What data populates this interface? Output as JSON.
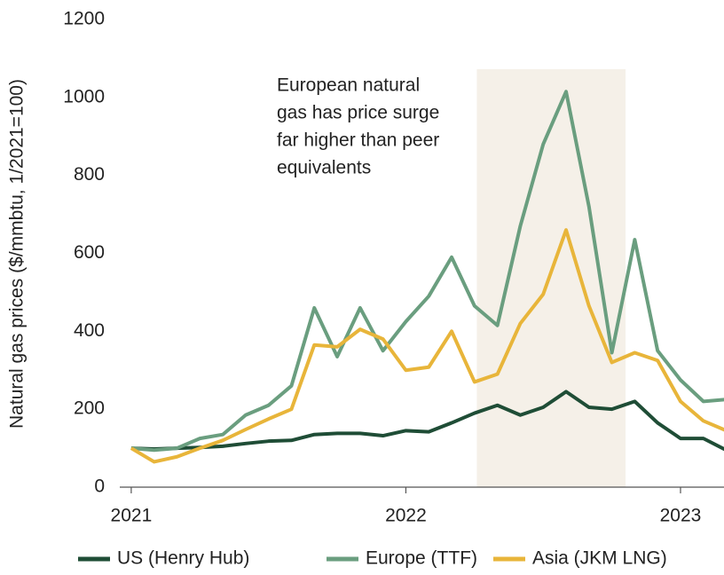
{
  "chart_data": {
    "type": "line",
    "y_label": "Natural gas prices ($/mmbtu, 1/2021=100)",
    "annotation": [
      "European natural",
      "gas has price surge",
      "far higher than peer",
      "equivalents"
    ],
    "shade": [
      15.1,
      21.6
    ],
    "x": [
      0,
      1,
      2,
      3,
      4,
      5,
      6,
      7,
      8,
      9,
      10,
      11,
      12,
      13,
      14,
      15,
      16,
      17,
      18,
      19,
      20,
      21,
      22,
      23,
      24,
      25,
      26
    ],
    "xlim": [
      -0.5,
      25.9
    ],
    "xticks": [
      {
        "value": 0,
        "label": "2021"
      },
      {
        "value": 12,
        "label": "2022"
      },
      {
        "value": 24,
        "label": "2023"
      }
    ],
    "ylim": [
      0,
      1200
    ],
    "yticks": [
      0,
      200,
      400,
      600,
      800,
      1000,
      1200
    ],
    "grid": false,
    "series": [
      {
        "name": "US (Henry Hub)",
        "color": "#1f4d36",
        "values": [
          100,
          98,
          100,
          102,
          105,
          112,
          118,
          120,
          135,
          138,
          138,
          132,
          145,
          142,
          165,
          190,
          210,
          185,
          205,
          245,
          205,
          200,
          220,
          165,
          125,
          125,
          95
        ]
      },
      {
        "name": "Europe (TTF)",
        "color": "#6a9e7f",
        "values": [
          100,
          95,
          100,
          125,
          135,
          185,
          210,
          260,
          460,
          335,
          460,
          350,
          425,
          490,
          590,
          465,
          415,
          670,
          880,
          1015,
          720,
          345,
          635,
          350,
          275,
          220,
          225
        ]
      },
      {
        "name": "Asia (JKM LNG)",
        "color": "#e8b53a",
        "values": [
          100,
          65,
          78,
          100,
          120,
          148,
          175,
          200,
          365,
          360,
          405,
          380,
          300,
          308,
          400,
          270,
          290,
          420,
          495,
          660,
          465,
          320,
          345,
          325,
          220,
          170,
          145
        ]
      }
    ]
  }
}
